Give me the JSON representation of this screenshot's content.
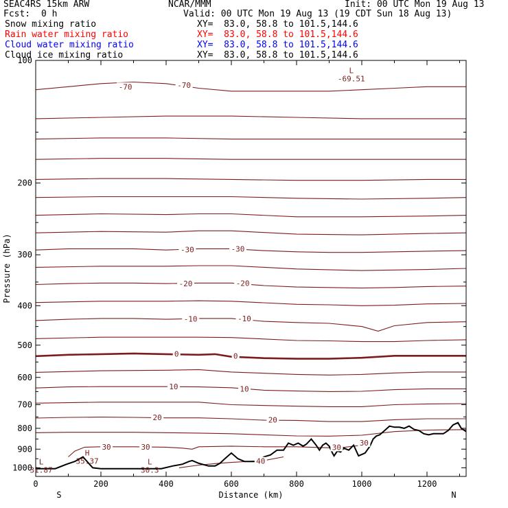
{
  "header": {
    "model": "SEAC4RS 15km ARW",
    "org": "NCAR/MMM",
    "init": "Init: 00 UTC Mon 19 Aug 13",
    "fcst_label": "Fcst:",
    "fcst_value": "0 h",
    "valid": "Valid: 00 UTC Mon 19 Aug 13 (19 CDT Sun 18 Aug 13)"
  },
  "legend": [
    {
      "label": "Snow mixing ratio",
      "xy": "XY=  83.0, 58.8 to 101.5,144.6",
      "color": "#000000"
    },
    {
      "label": "Rain water mixing ratio",
      "xy": "XY=  83.0, 58.8 to 101.5,144.6",
      "color": "#ff0000"
    },
    {
      "label": "Cloud water mixing ratio",
      "xy": "XY=  83.0, 58.8 to 101.5,144.6",
      "color": "#0000ff"
    },
    {
      "label": "Cloud ice mixing ratio",
      "xy": "XY=  83.0, 58.8 to 101.5,144.6",
      "color": "#000000"
    }
  ],
  "colors": {
    "contour": "#7b1c1c",
    "zero_contour": "#7b1c1c",
    "terrain": "#000000",
    "axes": "#000000"
  },
  "chart_data": {
    "type": "line",
    "xlabel": "Distance (km)",
    "ylabel": "Pressure (hPa)",
    "xlim": [
      0,
      1320
    ],
    "ylim": [
      1050,
      100
    ],
    "y_scale": "log",
    "x_ticks": [
      0,
      200,
      400,
      600,
      800,
      1000,
      1200
    ],
    "y_ticks": [
      100,
      200,
      300,
      400,
      500,
      600,
      700,
      800,
      900,
      1000
    ],
    "x_end_labels": {
      "left": "S",
      "right": "N"
    },
    "terrain": {
      "x": [
        0,
        60,
        95,
        120,
        145,
        155,
        175,
        200,
        260,
        350,
        385,
        420,
        450,
        470,
        480,
        500,
        530,
        550,
        565,
        580,
        600,
        620,
        640,
        660,
        680,
        700,
        720,
        740,
        760,
        775,
        790,
        805,
        820,
        830,
        845,
        860,
        870,
        880,
        890,
        900,
        910,
        915,
        925,
        935,
        945,
        960,
        975,
        990,
        1010,
        1025,
        1035,
        1045,
        1055,
        1070,
        1085,
        1100,
        1115,
        1130,
        1145,
        1160,
        1175,
        1190,
        1205,
        1220,
        1235,
        1250,
        1265,
        1280,
        1295,
        1305,
        1315,
        1320
      ],
      "p": [
        1005,
        1005,
        980,
        965,
        940,
        960,
        1000,
        1005,
        1005,
        1005,
        1005,
        990,
        980,
        965,
        960,
        975,
        990,
        990,
        975,
        950,
        920,
        950,
        965,
        965,
        965,
        940,
        930,
        905,
        905,
        870,
        880,
        870,
        885,
        875,
        850,
        880,
        905,
        880,
        870,
        885,
        920,
        935,
        910,
        915,
        895,
        905,
        880,
        935,
        920,
        885,
        850,
        835,
        830,
        810,
        790,
        795,
        795,
        800,
        790,
        805,
        810,
        825,
        830,
        825,
        825,
        825,
        810,
        785,
        775,
        800,
        810,
        815
      ]
    },
    "contours": [
      {
        "level": -70,
        "x": [
          0,
          100,
          200,
          300,
          400,
          500,
          600,
          700,
          800,
          900,
          1000,
          1100,
          1200,
          1320
        ],
        "p": [
          118,
          116,
          114,
          113,
          114,
          117,
          119,
          119,
          119,
          119,
          118,
          117,
          116,
          116
        ]
      },
      {
        "level": -65,
        "x": [
          0,
          200,
          400,
          600,
          800,
          1000,
          1200,
          1320
        ],
        "p": [
          139,
          138,
          137,
          137,
          138,
          139,
          139,
          139
        ]
      },
      {
        "level": -60,
        "x": [
          0,
          200,
          400,
          600,
          800,
          1000,
          1200,
          1320
        ],
        "p": [
          156,
          155,
          155,
          156,
          156,
          156,
          156,
          156
        ]
      },
      {
        "level": -55,
        "x": [
          0,
          200,
          400,
          600,
          800,
          1000,
          1200,
          1320
        ],
        "p": [
          175,
          174,
          174,
          175,
          175,
          175,
          175,
          175
        ]
      },
      {
        "level": -50,
        "x": [
          0,
          200,
          400,
          600,
          800,
          1000,
          1200,
          1320
        ],
        "p": [
          196,
          195,
          195,
          196,
          197,
          197,
          196,
          196
        ]
      },
      {
        "level": -45,
        "x": [
          0,
          200,
          400,
          600,
          800,
          1000,
          1200,
          1320
        ],
        "p": [
          217,
          216,
          216,
          216,
          218,
          219,
          218,
          217
        ]
      },
      {
        "level": -40,
        "x": [
          0,
          200,
          400,
          500,
          600,
          800,
          1000,
          1200,
          1320
        ],
        "p": [
          240,
          238,
          239,
          238,
          238,
          242,
          242,
          241,
          240
        ]
      },
      {
        "level": -35,
        "x": [
          0,
          200,
          400,
          500,
          600,
          800,
          1000,
          1200,
          1320
        ],
        "p": [
          265,
          263,
          264,
          262,
          262,
          267,
          268,
          266,
          265
        ]
      },
      {
        "level": -30,
        "x": [
          0,
          100,
          200,
          300,
          400,
          500,
          600,
          700,
          800,
          900,
          1000,
          1100,
          1200,
          1320
        ],
        "p": [
          292,
          290,
          290,
          290,
          292,
          290,
          290,
          293,
          295,
          296,
          296,
          295,
          294,
          293
        ]
      },
      {
        "level": -25,
        "x": [
          0,
          200,
          400,
          500,
          600,
          800,
          1000,
          1200,
          1320
        ],
        "p": [
          322,
          320,
          320,
          319,
          319,
          325,
          328,
          326,
          324
        ]
      },
      {
        "level": -20,
        "x": [
          0,
          100,
          200,
          300,
          400,
          500,
          600,
          700,
          800,
          900,
          1000,
          1100,
          1200,
          1320
        ],
        "p": [
          355,
          353,
          352,
          352,
          353,
          352,
          352,
          357,
          360,
          361,
          362,
          361,
          359,
          358
        ]
      },
      {
        "level": -15,
        "x": [
          0,
          200,
          400,
          500,
          600,
          800,
          900,
          1000,
          1100,
          1200,
          1320
        ],
        "p": [
          393,
          390,
          390,
          389,
          390,
          397,
          398,
          400,
          399,
          396,
          395
        ]
      },
      {
        "level": -10,
        "x": [
          0,
          100,
          200,
          300,
          400,
          500,
          600,
          700,
          800,
          900,
          1000,
          1050,
          1100,
          1200,
          1320
        ],
        "p": [
          435,
          432,
          430,
          430,
          432,
          430,
          430,
          437,
          440,
          442,
          450,
          462,
          448,
          440,
          438
        ]
      },
      {
        "level": -5,
        "x": [
          0,
          200,
          400,
          500,
          600,
          800,
          900,
          1000,
          1100,
          1200,
          1320
        ],
        "p": [
          482,
          478,
          478,
          478,
          479,
          487,
          488,
          490,
          490,
          487,
          485
        ]
      },
      {
        "level": 0,
        "x": [
          0,
          100,
          200,
          300,
          400,
          500,
          550,
          600,
          700,
          800,
          900,
          1000,
          1100,
          1200,
          1320
        ],
        "p": [
          532,
          528,
          526,
          524,
          526,
          528,
          526,
          534,
          538,
          540,
          540,
          537,
          531,
          531,
          531
        ]
      },
      {
        "level": 5,
        "x": [
          0,
          200,
          400,
          500,
          600,
          800,
          900,
          1000,
          1100,
          1200,
          1320
        ],
        "p": [
          583,
          578,
          576,
          574,
          582,
          590,
          592,
          590,
          585,
          582,
          582
        ]
      },
      {
        "level": 10,
        "x": [
          0,
          100,
          200,
          300,
          400,
          500,
          600,
          700,
          800,
          900,
          1000,
          1100,
          1200,
          1320
        ],
        "p": [
          637,
          633,
          632,
          632,
          632,
          633,
          636,
          645,
          648,
          650,
          649,
          643,
          640,
          640
        ]
      },
      {
        "level": 15,
        "x": [
          0,
          200,
          400,
          500,
          600,
          800,
          900,
          1000,
          1100,
          1200,
          1320
        ],
        "p": [
          694,
          690,
          690,
          690,
          700,
          706,
          708,
          708,
          700,
          697,
          696
        ]
      },
      {
        "level": 20,
        "x": [
          0,
          100,
          200,
          300,
          400,
          500,
          600,
          700,
          800,
          900,
          1000,
          1100,
          1200,
          1320
        ],
        "p": [
          755,
          752,
          751,
          752,
          754,
          754,
          758,
          764,
          765,
          770,
          770,
          762,
          758,
          758
        ]
      },
      {
        "level": 25,
        "x": [
          0,
          100,
          200,
          300,
          400,
          500,
          600,
          700,
          800,
          900,
          1000,
          1100,
          1200,
          1320
        ],
        "p": [
          820,
          818,
          818,
          818,
          820,
          822,
          825,
          830,
          835,
          836,
          832,
          815,
          808,
          806
        ]
      },
      {
        "level": 30,
        "x": [
          100,
          120,
          150,
          200,
          300,
          400,
          450,
          480,
          500,
          600,
          700,
          800,
          900,
          950,
          1000
        ],
        "p": [
          940,
          910,
          890,
          888,
          888,
          890,
          895,
          900,
          888,
          885,
          888,
          888,
          893,
          890,
          880
        ]
      },
      {
        "level": 40,
        "x": [
          440,
          500,
          560,
          600,
          650,
          700,
          760
        ],
        "p": [
          1000,
          985,
          975,
          970,
          965,
          960,
          940
        ]
      }
    ],
    "contour_labels": [
      {
        "text": "-70",
        "x": 275,
        "p": 116
      },
      {
        "text": "-70",
        "x": 455,
        "p": 115
      },
      {
        "text": "-30",
        "x": 465,
        "p": 291
      },
      {
        "text": "-30",
        "x": 620,
        "p": 290
      },
      {
        "text": "-20",
        "x": 460,
        "p": 353
      },
      {
        "text": "-20",
        "x": 635,
        "p": 352
      },
      {
        "text": "-10",
        "x": 475,
        "p": 431
      },
      {
        "text": "-10",
        "x": 640,
        "p": 430
      },
      {
        "text": "0",
        "x": 432,
        "p": 525
      },
      {
        "text": "0",
        "x": 613,
        "p": 531
      },
      {
        "text": "10",
        "x": 423,
        "p": 632
      },
      {
        "text": "10",
        "x": 640,
        "p": 640
      },
      {
        "text": "20",
        "x": 373,
        "p": 752
      },
      {
        "text": "20",
        "x": 727,
        "p": 763
      },
      {
        "text": "30",
        "x": 217,
        "p": 888
      },
      {
        "text": "30",
        "x": 337,
        "p": 888
      },
      {
        "text": "30",
        "x": 923,
        "p": 890
      },
      {
        "text": "30",
        "x": 1007,
        "p": 868
      },
      {
        "text": "40",
        "x": 690,
        "p": 963
      }
    ],
    "extrema": [
      {
        "mark": "L",
        "value": "-69.51",
        "x": 968,
        "p": 110
      },
      {
        "mark": "H",
        "value": "35.37",
        "x": 158,
        "p": 955
      },
      {
        "mark": "L",
        "value": "31.87",
        "x": 17,
        "p": 1005
      },
      {
        "mark": "L",
        "value": "30.3",
        "x": 350,
        "p": 1005
      }
    ]
  }
}
